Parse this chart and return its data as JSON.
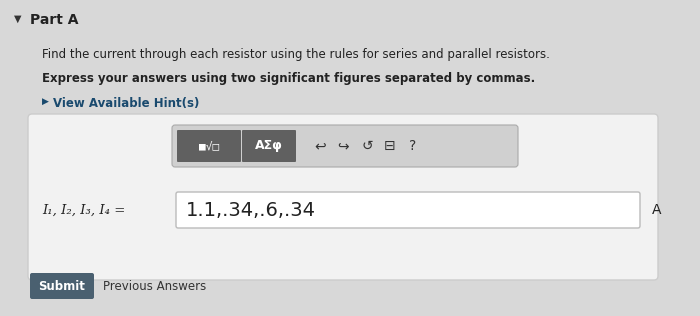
{
  "bg_color": "#d8d8d8",
  "part_a_text": "Part A",
  "line1": "Find the current through each resistor using the rules for series and parallel resistors.",
  "line2": "Express your answers using two significant figures separated by commas.",
  "hint_text": "View Available Hint(s)",
  "label_text": "I₁, I₂, I₃, I₄ =",
  "answer_text": "1.1,.34,.6,.34",
  "unit_text": "A",
  "submit_text": "Submit",
  "prev_text": "Previous Answers",
  "outer_box_bg": "#f2f2f2",
  "outer_box_border": "#cccccc",
  "toolbar_light_bg": "#d0d0d0",
  "toolbar_dark_bg": "#606060",
  "toolbar_dark2_bg": "#707070",
  "input_box_bg": "#ffffff",
  "input_box_border": "#bbbbbb",
  "submit_bg": "#4a6070",
  "submit_text_color": "#ffffff",
  "part_a_color": "#222222",
  "body_text_color": "#222222",
  "hint_color": "#1a4a6e",
  "unit_color": "#222222"
}
